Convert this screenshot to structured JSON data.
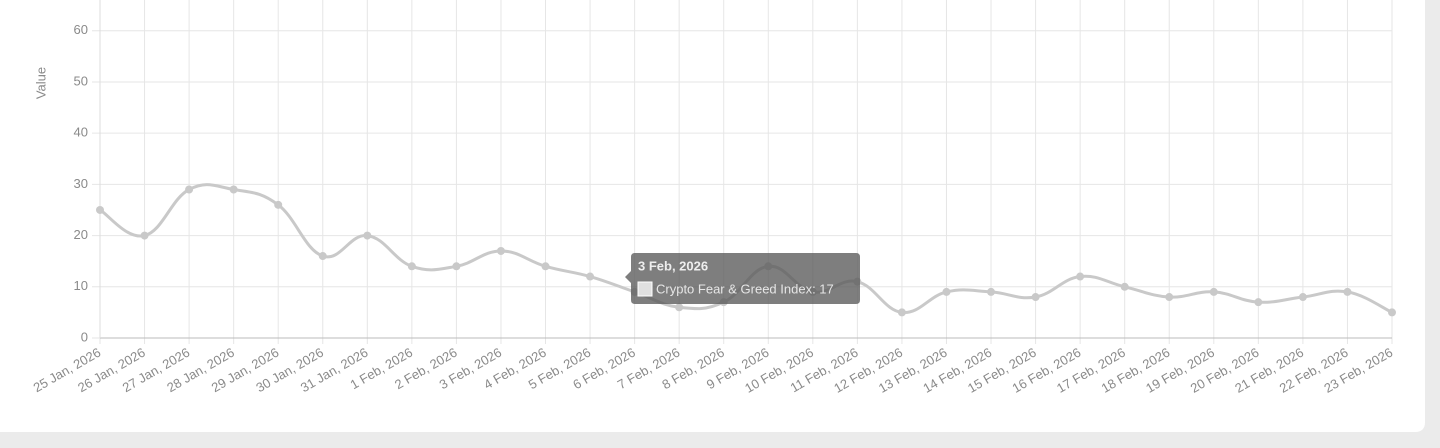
{
  "chart_data": {
    "type": "line",
    "y_label": "Value",
    "categories": [
      "25 Jan, 2026",
      "26 Jan, 2026",
      "27 Jan, 2026",
      "28 Jan, 2026",
      "29 Jan, 2026",
      "30 Jan, 2026",
      "31 Jan, 2026",
      "1 Feb, 2026",
      "2 Feb, 2026",
      "3 Feb, 2026",
      "4 Feb, 2026",
      "5 Feb, 2026",
      "6 Feb, 2026",
      "7 Feb, 2026",
      "8 Feb, 2026",
      "9 Feb, 2026",
      "10 Feb, 2026",
      "11 Feb, 2026",
      "12 Feb, 2026",
      "13 Feb, 2026",
      "14 Feb, 2026",
      "15 Feb, 2026",
      "16 Feb, 2026",
      "17 Feb, 2026",
      "18 Feb, 2026",
      "19 Feb, 2026",
      "20 Feb, 2026",
      "21 Feb, 2026",
      "22 Feb, 2026",
      "23 Feb, 2026"
    ],
    "series": [
      {
        "name": "Crypto Fear & Greed Index",
        "color": "#c9c9c9",
        "values": [
          25,
          20,
          29,
          29,
          26,
          16,
          20,
          14,
          14,
          17,
          14,
          12,
          9,
          6,
          7,
          14,
          9,
          11,
          5,
          9,
          9,
          8,
          12,
          10,
          8,
          9,
          7,
          8,
          9,
          5
        ]
      }
    ],
    "ylim": [
      0,
      66
    ],
    "yticks": [
      0,
      10,
      20,
      30,
      40,
      50,
      60
    ],
    "grid": true,
    "tooltip": {
      "title": "3 Feb, 2026",
      "text": "Crypto Fear & Greed Index: 17"
    }
  }
}
